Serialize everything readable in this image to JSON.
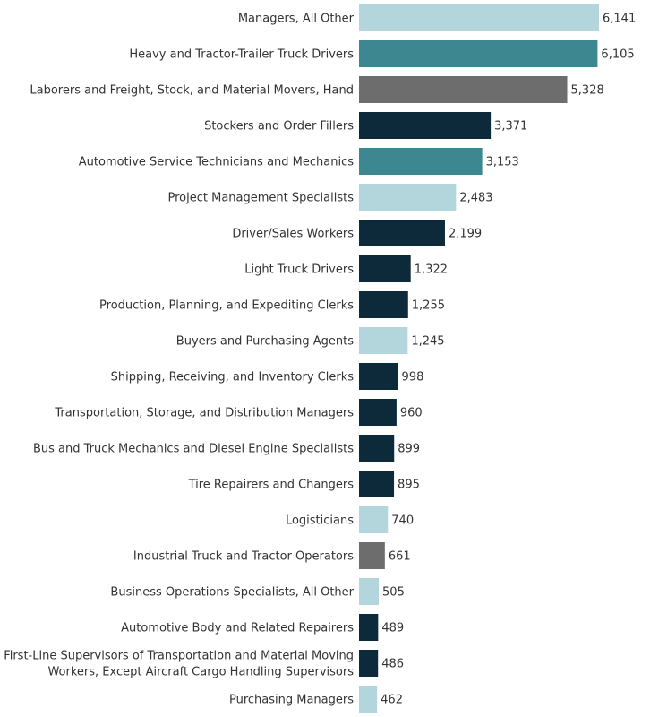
{
  "chart_data": {
    "type": "bar",
    "orientation": "horizontal",
    "title": "",
    "xlabel": "",
    "ylabel": "",
    "xlim": [
      0,
      6141
    ],
    "grid": false,
    "legend": "none",
    "colors": {
      "light": "#b2d6dc",
      "teal": "#3d8790",
      "gray": "#6d6d6d",
      "dark": "#0c2a39"
    },
    "bars": [
      {
        "category": "Managers, All Other",
        "value": 6141,
        "label": "6,141",
        "color_key": "light"
      },
      {
        "category": "Heavy and Tractor-Trailer Truck Drivers",
        "value": 6105,
        "label": "6,105",
        "color_key": "teal"
      },
      {
        "category": "Laborers and Freight, Stock, and Material Movers, Hand",
        "value": 5328,
        "label": "5,328",
        "color_key": "gray"
      },
      {
        "category": "Stockers and Order Fillers",
        "value": 3371,
        "label": "3,371",
        "color_key": "dark"
      },
      {
        "category": "Automotive Service Technicians and Mechanics",
        "value": 3153,
        "label": "3,153",
        "color_key": "teal"
      },
      {
        "category": "Project Management Specialists",
        "value": 2483,
        "label": "2,483",
        "color_key": "light"
      },
      {
        "category": "Driver/Sales Workers",
        "value": 2199,
        "label": "2,199",
        "color_key": "dark"
      },
      {
        "category": "Light Truck Drivers",
        "value": 1322,
        "label": "1,322",
        "color_key": "dark"
      },
      {
        "category": "Production, Planning, and Expediting Clerks",
        "value": 1255,
        "label": "1,255",
        "color_key": "dark"
      },
      {
        "category": "Buyers and Purchasing Agents",
        "value": 1245,
        "label": "1,245",
        "color_key": "light"
      },
      {
        "category": "Shipping, Receiving, and Inventory Clerks",
        "value": 998,
        "label": "998",
        "color_key": "dark"
      },
      {
        "category": "Transportation, Storage, and Distribution Managers",
        "value": 960,
        "label": "960",
        "color_key": "dark"
      },
      {
        "category": "Bus and Truck Mechanics and Diesel Engine Specialists",
        "value": 899,
        "label": "899",
        "color_key": "dark"
      },
      {
        "category": "Tire Repairers and Changers",
        "value": 895,
        "label": "895",
        "color_key": "dark"
      },
      {
        "category": "Logisticians",
        "value": 740,
        "label": "740",
        "color_key": "light"
      },
      {
        "category": "Industrial Truck and Tractor Operators",
        "value": 661,
        "label": "661",
        "color_key": "gray"
      },
      {
        "category": "Business Operations Specialists, All Other",
        "value": 505,
        "label": "505",
        "color_key": "light"
      },
      {
        "category": "Automotive Body and Related Repairers",
        "value": 489,
        "label": "489",
        "color_key": "dark"
      },
      {
        "category": "First-Line Supervisors of Transportation and Material Moving Workers, Except Aircraft Cargo Handling Supervisors",
        "category_lines": [
          "First-Line Supervisors of Transportation and Material Moving",
          "Workers, Except Aircraft Cargo Handling Supervisors"
        ],
        "value": 486,
        "label": "486",
        "color_key": "dark"
      },
      {
        "category": "Purchasing Managers",
        "value": 462,
        "label": "462",
        "color_key": "light"
      }
    ]
  }
}
